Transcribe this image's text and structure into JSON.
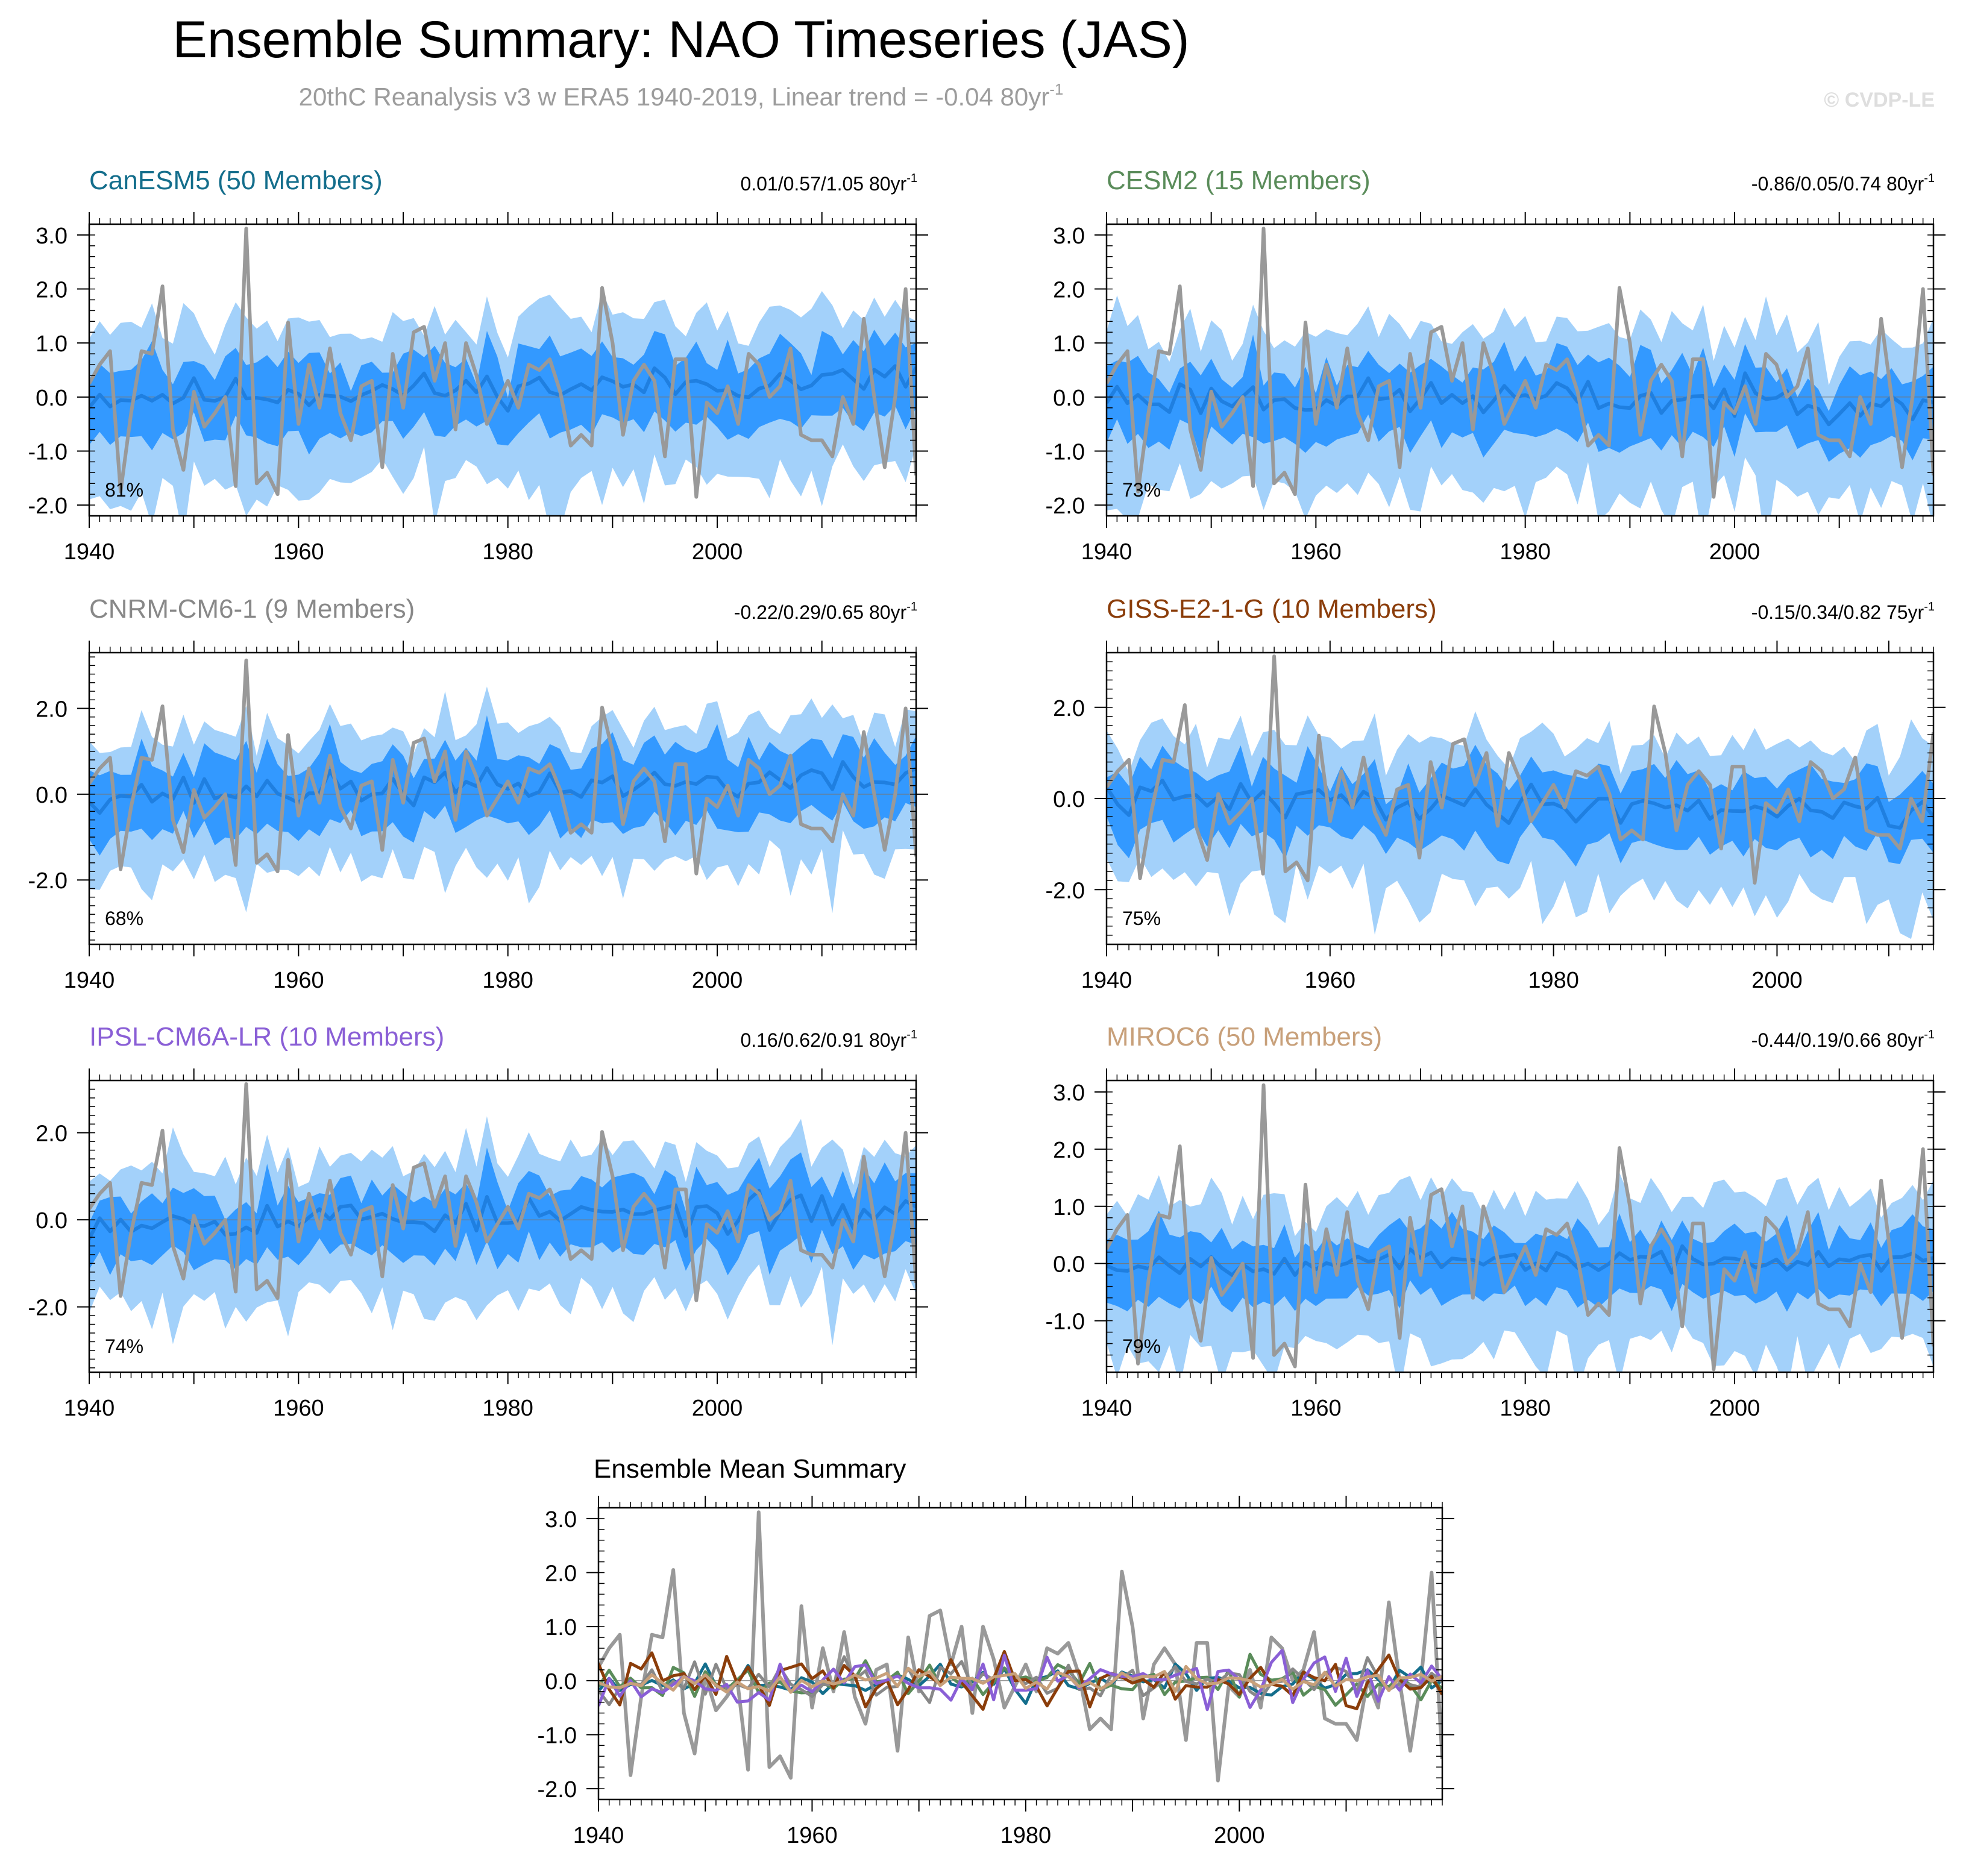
{
  "figure": {
    "title": "Ensemble Summary: NAO Timeseries (JAS)",
    "subtitle_main": "20thC Reanalysis v3 w ERA5 1940-2019, Linear trend = -0.04 80yr",
    "subtitle_sup": "-1",
    "watermark": "© CVDP-LE"
  },
  "colors": {
    "band_outer": "#a3d1fa",
    "band_inner": "#3399ff",
    "ens_mean": "#1f7fe0",
    "obs": "#999999",
    "axis": "#000000"
  },
  "chart_data": [
    {
      "type": "area",
      "panel": "CanESM5",
      "title": "CanESM5 (50 Members)",
      "title_color": "#146e8c",
      "trend_text": "0.01/0.57/1.05 80yr",
      "trend_sup": "-1",
      "pct_label": "81%",
      "xlim": [
        1940,
        2019
      ],
      "ylim": [
        -2.2,
        3.2
      ],
      "yticks": [
        -2.0,
        -1.0,
        0.0,
        1.0,
        2.0,
        3.0
      ],
      "ytick_labels": [
        "-2.0",
        "-1.0",
        "0.0",
        "1.0",
        "2.0",
        "3.0"
      ],
      "xticks": [
        1940,
        1960,
        1980,
        2000
      ],
      "xtick_labels": [
        "1940",
        "1960",
        "1980",
        "2000"
      ],
      "seed": 11,
      "mean_amp": 0.22,
      "mean_end": 0.55,
      "inner_half": 0.7,
      "outer_half": 1.55
    },
    {
      "type": "area",
      "panel": "CESM2",
      "title": "CESM2 (15 Members)",
      "title_color": "#5a8c5a",
      "trend_text": "-0.86/0.05/0.74 80yr",
      "trend_sup": "-1",
      "pct_label": "73%",
      "xlim": [
        1940,
        2019
      ],
      "ylim": [
        -2.2,
        3.2
      ],
      "yticks": [
        -2.0,
        -1.0,
        0.0,
        1.0,
        2.0,
        3.0
      ],
      "ytick_labels": [
        "-2.0",
        "-1.0",
        "0.0",
        "1.0",
        "2.0",
        "3.0"
      ],
      "xticks": [
        1940,
        1960,
        1980,
        2000
      ],
      "xtick_labels": [
        "1940",
        "1960",
        "1980",
        "2000"
      ],
      "seed": 23,
      "mean_amp": 0.25,
      "mean_end": -0.1,
      "inner_half": 0.7,
      "outer_half": 1.55
    },
    {
      "type": "area",
      "panel": "CNRM-CM6-1",
      "title": "CNRM-CM6-1 (9 Members)",
      "title_color": "#888888",
      "trend_text": "-0.22/0.29/0.65 80yr",
      "trend_sup": "-1",
      "pct_label": "68%",
      "xlim": [
        1940,
        2019
      ],
      "ylim": [
        -3.5,
        3.3
      ],
      "yticks": [
        -2.0,
        0.0,
        2.0
      ],
      "ytick_labels": [
        "-2.0",
        "0.0",
        "2.0"
      ],
      "xticks": [
        1940,
        1960,
        1980,
        2000
      ],
      "xtick_labels": [
        "1940",
        "1960",
        "1980",
        "2000"
      ],
      "seed": 37,
      "mean_amp": 0.28,
      "mean_end": 0.6,
      "inner_half": 0.85,
      "outer_half": 1.7
    },
    {
      "type": "area",
      "panel": "GISS-E2-1-G",
      "title": "GISS-E2-1-G (10 Members)",
      "title_color": "#8b3d0a",
      "trend_text": "-0.15/0.34/0.82 75yr",
      "trend_sup": "-1",
      "pct_label": "75%",
      "xlim": [
        1940,
        2014
      ],
      "ylim": [
        -3.2,
        3.2
      ],
      "yticks": [
        -2.0,
        0.0,
        2.0
      ],
      "ytick_labels": [
        "-2.0",
        "0.0",
        "2.0"
      ],
      "xticks": [
        1940,
        1960,
        1980,
        2000
      ],
      "xtick_labels": [
        "1940",
        "1960",
        "1980",
        "2000"
      ],
      "seed": 41,
      "mean_amp": 0.28,
      "mean_end": -0.4,
      "inner_half": 0.8,
      "outer_half": 1.65
    },
    {
      "type": "area",
      "panel": "IPSL-CM6A-LR",
      "title": "IPSL-CM6A-LR (10 Members)",
      "title_color": "#8a5fd6",
      "trend_text": "0.16/0.62/0.91 80yr",
      "trend_sup": "-1",
      "pct_label": "74%",
      "xlim": [
        1940,
        2019
      ],
      "ylim": [
        -3.5,
        3.2
      ],
      "yticks": [
        -2.0,
        0.0,
        2.0
      ],
      "ytick_labels": [
        "-2.0",
        "0.0",
        "2.0"
      ],
      "xticks": [
        1940,
        1960,
        1980,
        2000
      ],
      "xtick_labels": [
        "1940",
        "1960",
        "1980",
        "2000"
      ],
      "seed": 53,
      "mean_amp": 0.3,
      "mean_end": 0.3,
      "inner_half": 0.8,
      "outer_half": 1.7
    },
    {
      "type": "area",
      "panel": "MIROC6",
      "title": "MIROC6 (50 Members)",
      "title_color": "#c8a07a",
      "trend_text": "-0.44/0.19/0.66 80yr",
      "trend_sup": "-1",
      "pct_label": "79%",
      "xlim": [
        1940,
        2019
      ],
      "ylim": [
        -1.9,
        3.2
      ],
      "yticks": [
        -1.0,
        0.0,
        1.0,
        2.0,
        3.0
      ],
      "ytick_labels": [
        "-1.0",
        "0.0",
        "1.0",
        "2.0",
        "3.0"
      ],
      "xticks": [
        1940,
        1960,
        1980,
        2000
      ],
      "xtick_labels": [
        "1940",
        "1960",
        "1980",
        "2000"
      ],
      "seed": 67,
      "mean_amp": 0.14,
      "mean_end": 0.1,
      "inner_half": 0.6,
      "outer_half": 1.35
    },
    {
      "type": "line",
      "panel": "Ensemble Mean Summary",
      "title": "Ensemble Mean Summary",
      "title_color": "#000000",
      "xlim": [
        1940,
        2019
      ],
      "ylim": [
        -2.2,
        3.2
      ],
      "yticks": [
        -2.0,
        -1.0,
        0.0,
        1.0,
        2.0,
        3.0
      ],
      "ytick_labels": [
        "-2.0",
        "-1.0",
        "0.0",
        "1.0",
        "2.0",
        "3.0"
      ],
      "xticks": [
        1940,
        1960,
        1980,
        2000
      ],
      "xtick_labels": [
        "1940",
        "1960",
        "1980",
        "2000"
      ],
      "series": [
        {
          "name": "CanESM5",
          "color": "#146e8c",
          "seed": 11,
          "amp": 0.22
        },
        {
          "name": "CESM2",
          "color": "#5a8c5a",
          "seed": 23,
          "amp": 0.25
        },
        {
          "name": "CNRM-CM6-1",
          "color": "#888888",
          "seed": 37,
          "amp": 0.28
        },
        {
          "name": "GISS-E2-1-G",
          "color": "#8b3d0a",
          "seed": 41,
          "amp": 0.35
        },
        {
          "name": "IPSL-CM6A-LR",
          "color": "#8a5fd6",
          "seed": 53,
          "amp": 0.32
        },
        {
          "name": "MIROC6",
          "color": "#c8a07a",
          "seed": 67,
          "amp": 0.14
        }
      ]
    }
  ],
  "observed": {
    "name": "20thC Reanalysis v3 w ERA5",
    "x_start": 1940,
    "values": [
      0.25,
      0.6,
      0.85,
      -1.75,
      -0.3,
      0.85,
      0.8,
      2.05,
      -0.6,
      -1.35,
      0.1,
      -0.55,
      -0.3,
      0.0,
      -1.65,
      3.12,
      -1.6,
      -1.4,
      -1.8,
      1.38,
      -0.5,
      0.6,
      -0.2,
      0.9,
      -0.3,
      -0.8,
      0.2,
      0.3,
      -1.3,
      0.8,
      -0.2,
      1.2,
      1.3,
      0.3,
      1.0,
      -0.6,
      1.0,
      0.4,
      -0.5,
      -0.1,
      0.3,
      -0.2,
      0.6,
      0.5,
      0.7,
      0.1,
      -0.9,
      -0.7,
      -0.9,
      2.02,
      1.0,
      -0.7,
      0.3,
      0.6,
      0.3,
      -1.1,
      0.7,
      0.7,
      -1.85,
      -0.1,
      -0.3,
      0.2,
      -0.5,
      0.8,
      0.6,
      0.0,
      0.2,
      0.9,
      -0.7,
      -0.8,
      -0.8,
      -1.1,
      0.0,
      -0.5,
      1.45,
      0.0,
      -1.3,
      0.0,
      2.0,
      -1.45
    ]
  }
}
